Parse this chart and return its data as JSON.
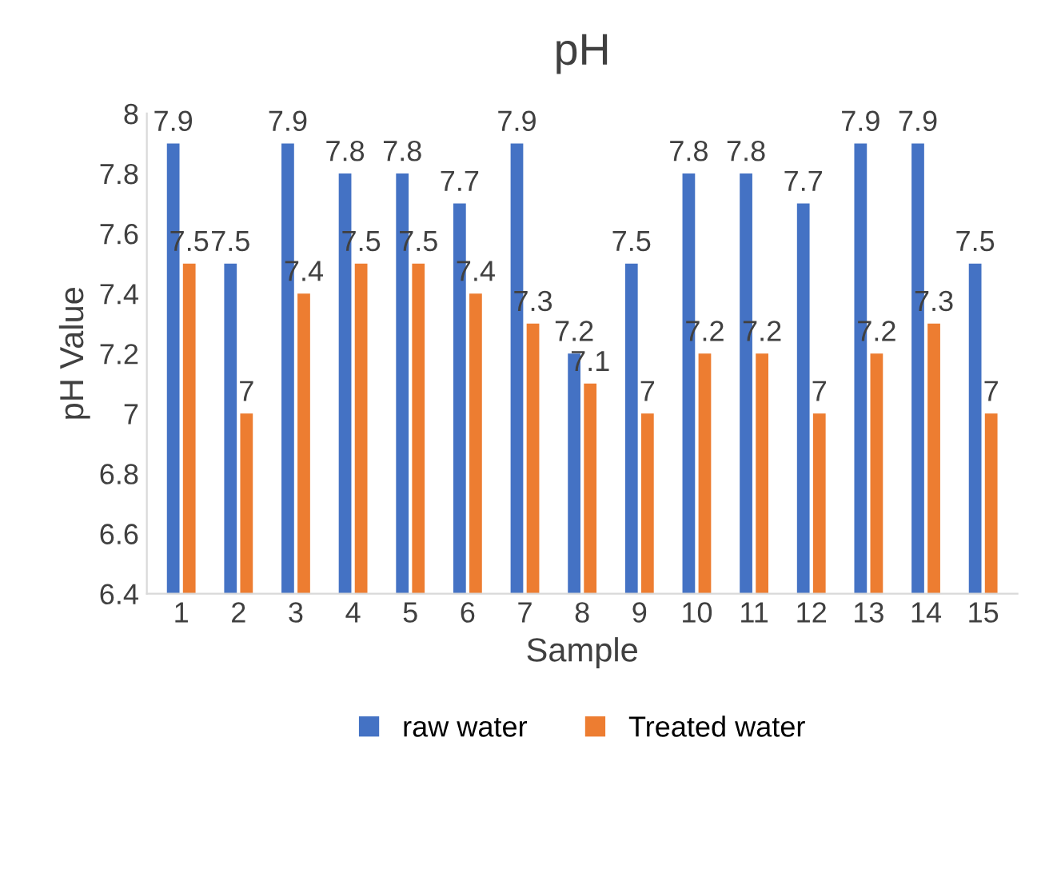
{
  "chart_data": {
    "type": "bar",
    "title": "pH",
    "xlabel": "Sample",
    "ylabel": "pH Value",
    "categories": [
      "1",
      "2",
      "3",
      "4",
      "5",
      "6",
      "7",
      "8",
      "9",
      "10",
      "11",
      "12",
      "13",
      "14",
      "15"
    ],
    "series": [
      {
        "name": "raw water",
        "color": "#4472c4",
        "values": [
          7.9,
          7.5,
          7.9,
          7.8,
          7.8,
          7.7,
          7.9,
          7.2,
          7.5,
          7.8,
          7.8,
          7.7,
          7.9,
          7.9,
          7.5
        ]
      },
      {
        "name": "Treated water",
        "color": "#ed7d31",
        "values": [
          7.5,
          7,
          7.4,
          7.5,
          7.5,
          7.4,
          7.3,
          7.1,
          7,
          7.2,
          7.2,
          7,
          7.2,
          7.3,
          7
        ]
      }
    ],
    "ylim": [
      6.4,
      8
    ],
    "yticks": [
      6.4,
      6.6,
      6.8,
      7,
      7.2,
      7.4,
      7.6,
      7.8,
      8
    ],
    "data_labels": true,
    "grid": false,
    "legend": "bottom"
  }
}
